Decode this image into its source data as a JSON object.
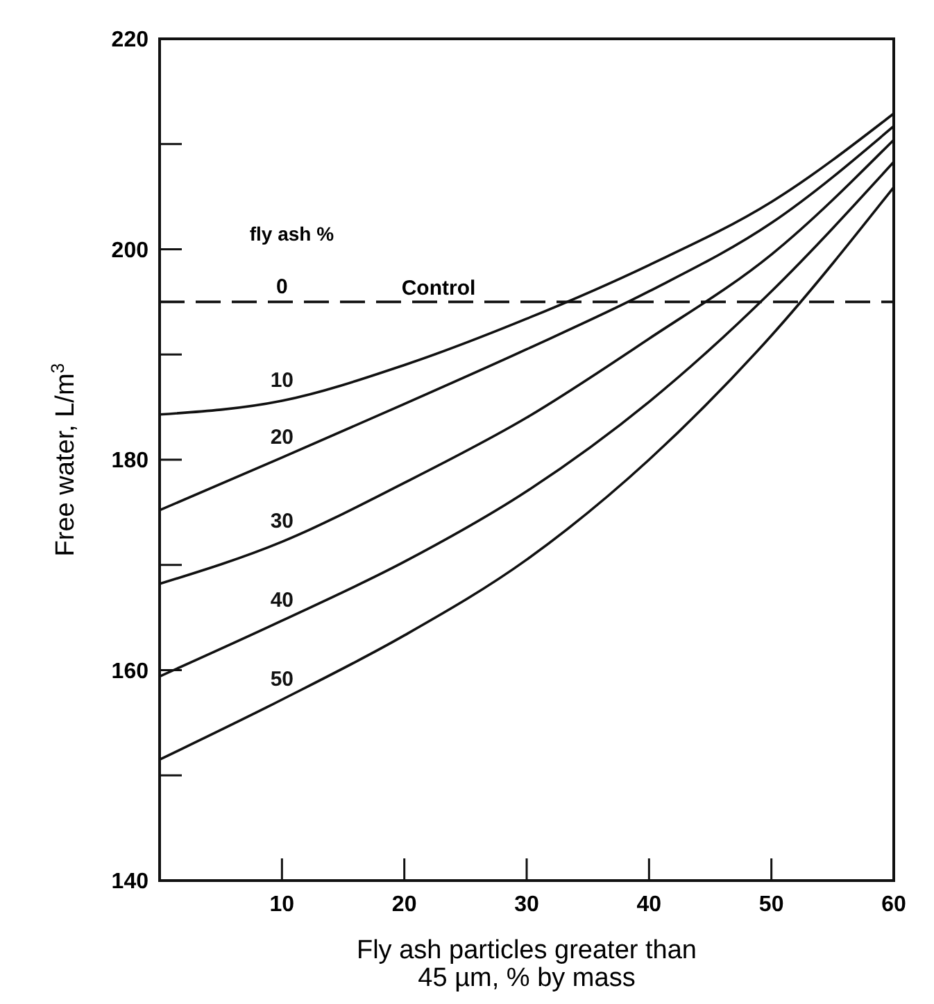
{
  "chart_data": {
    "type": "line",
    "xlabel": "Fly ash particles greater than\n45 µm, % by mass",
    "ylabel": "Free water, L/m$^{3}$",
    "legend_title": "fly ash %",
    "x": [
      0,
      10,
      20,
      30,
      40,
      50,
      60
    ],
    "series": [
      {
        "name": "10",
        "color": "#111111",
        "values": [
          184.3,
          185.6,
          189,
          193.4,
          198.5,
          204.5,
          212.9
        ]
      },
      {
        "name": "20",
        "color": "#111111",
        "values": [
          175.2,
          180.2,
          185.3,
          190.5,
          196,
          202.5,
          211.7
        ]
      },
      {
        "name": "30",
        "color": "#111111",
        "values": [
          168.2,
          172.2,
          177.8,
          184,
          191.5,
          199.5,
          210.4
        ]
      },
      {
        "name": "40",
        "color": "#111111",
        "values": [
          159.4,
          164.7,
          170.3,
          177,
          185.5,
          196,
          208.3
        ]
      },
      {
        "name": "50",
        "color": "#111111",
        "values": [
          151.5,
          157.2,
          163.3,
          170.5,
          180,
          191.8,
          205.9
        ]
      }
    ],
    "ref_lines": [
      {
        "axis": "y",
        "value": 195,
        "label": "Control",
        "color": "#111111",
        "line_style": "dashed"
      }
    ],
    "annotations": [
      {
        "text": "0",
        "x": 10,
        "y": 195
      }
    ],
    "xlim": [
      0,
      60
    ],
    "ylim": [
      140,
      220
    ],
    "xticks": [
      10,
      20,
      30,
      40,
      50,
      60
    ],
    "yticks": [
      140,
      {
        "value": 150,
        "label": null
      },
      160,
      {
        "value": 170,
        "label": null
      },
      180,
      {
        "value": 190,
        "label": null
      },
      200,
      {
        "value": 210,
        "label": null
      },
      220
    ],
    "grid": false,
    "marker": "none",
    "line_style": "solid"
  }
}
